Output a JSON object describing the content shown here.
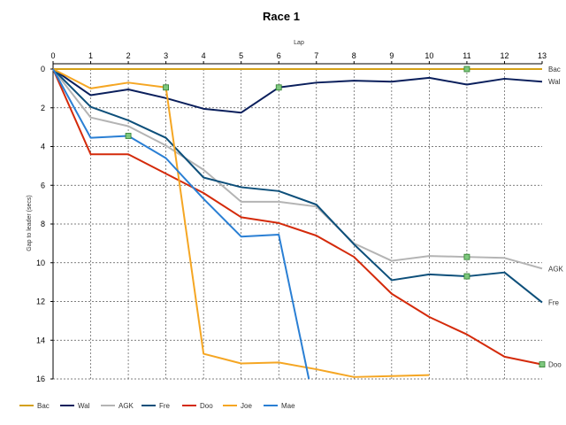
{
  "chart_data": {
    "type": "line",
    "title": "Race 1",
    "xlabel": "Lap",
    "ylabel": "Gap to leader (secs)",
    "x_axis_position": "top",
    "y_inverted": true,
    "xlim": [
      0,
      13
    ],
    "ylim": [
      0,
      16
    ],
    "x_ticks": [
      0,
      1,
      2,
      3,
      4,
      5,
      6,
      7,
      8,
      9,
      10,
      11,
      12,
      13
    ],
    "y_ticks": [
      0,
      2,
      4,
      6,
      8,
      10,
      12,
      14,
      16
    ],
    "grid": true,
    "legend_position": "bottom",
    "series": [
      {
        "name": "Bac",
        "color": "#d4a017",
        "x": [
          0,
          1,
          2,
          3,
          4,
          5,
          6,
          7,
          8,
          9,
          10,
          11,
          12,
          13
        ],
        "y": [
          0,
          0,
          0,
          0,
          0,
          0,
          0,
          0,
          0,
          0,
          0,
          0,
          0,
          0
        ],
        "markers": [
          11
        ],
        "end_label": "Bac"
      },
      {
        "name": "Wal",
        "color": "#0a1f5c",
        "x": [
          0,
          1,
          2,
          3,
          4,
          5,
          6,
          7,
          8,
          9,
          10,
          11,
          12,
          13
        ],
        "y": [
          0,
          1.35,
          1.05,
          1.5,
          2.05,
          2.25,
          0.95,
          0.7,
          0.6,
          0.65,
          0.45,
          0.8,
          0.5,
          0.65
        ],
        "markers": [
          6
        ],
        "end_label": "Wal"
      },
      {
        "name": "AGK",
        "color": "#b4b4b4",
        "x": [
          0,
          1,
          2,
          3,
          4,
          5,
          6,
          7,
          8,
          9,
          10,
          11,
          12,
          13
        ],
        "y": [
          0,
          2.5,
          2.95,
          3.95,
          5.2,
          6.85,
          6.85,
          7.1,
          9.0,
          9.9,
          9.65,
          9.7,
          9.75,
          10.3
        ],
        "markers": [
          11
        ],
        "end_label": "AGK"
      },
      {
        "name": "Fre",
        "color": "#0d4f7a",
        "x": [
          0,
          1,
          2,
          3,
          4,
          5,
          6,
          7,
          8,
          9,
          10,
          11,
          12,
          13
        ],
        "y": [
          0,
          1.95,
          2.65,
          3.55,
          5.6,
          6.1,
          6.3,
          7.0,
          9.05,
          10.9,
          10.6,
          10.7,
          10.5,
          12.05
        ],
        "markers": [
          11
        ],
        "end_label": "Fre"
      },
      {
        "name": "Doo",
        "color": "#d42a0a",
        "x": [
          0,
          1,
          2,
          3,
          4,
          5,
          6,
          7,
          8,
          9,
          10,
          11,
          12,
          13
        ],
        "y": [
          0,
          4.4,
          4.4,
          5.4,
          6.4,
          7.65,
          7.95,
          8.6,
          9.7,
          11.6,
          12.8,
          13.7,
          14.85,
          15.25
        ],
        "markers": [
          13
        ],
        "end_label": "Doo"
      },
      {
        "name": "Joe",
        "color": "#f5a623",
        "x": [
          0,
          1,
          2,
          3,
          4,
          5,
          6,
          7,
          8,
          9,
          10
        ],
        "y": [
          0,
          1.0,
          0.7,
          0.95,
          14.7,
          15.2,
          15.15,
          15.5,
          15.9,
          15.85,
          15.8
        ],
        "markers": [
          3
        ],
        "end_label": ""
      },
      {
        "name": "Mae",
        "color": "#2a7fd4",
        "x": [
          0,
          1,
          2,
          3,
          4,
          5,
          6,
          6.8
        ],
        "y": [
          0,
          3.55,
          3.45,
          4.6,
          6.7,
          8.65,
          8.55,
          16.0
        ],
        "markers": [
          2
        ],
        "end_label": ""
      }
    ]
  }
}
